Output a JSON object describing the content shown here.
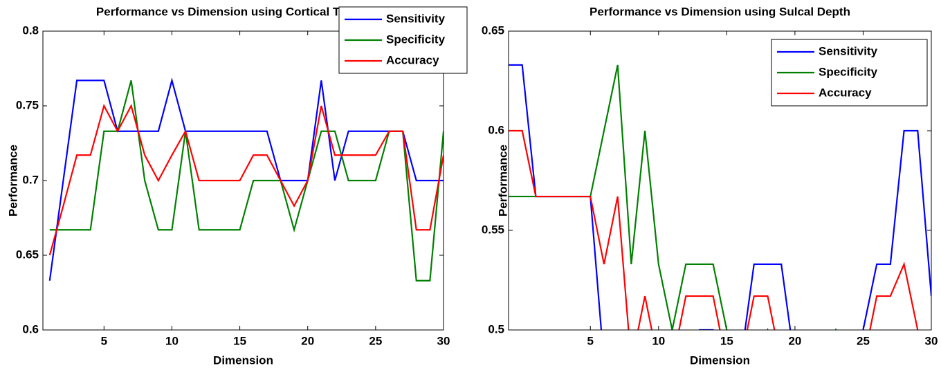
{
  "chart_data": [
    {
      "type": "line",
      "title": "Performance vs Dimension using Cortical Thickness",
      "xlabel": "Dimension",
      "ylabel": "Performance",
      "x": [
        1,
        2,
        3,
        4,
        5,
        6,
        7,
        8,
        9,
        10,
        11,
        12,
        13,
        14,
        15,
        16,
        17,
        18,
        19,
        20,
        21,
        22,
        23,
        24,
        25,
        26,
        27,
        28,
        29,
        30
      ],
      "xlim": [
        0.5,
        30
      ],
      "xticks": [
        5,
        10,
        15,
        20,
        25,
        30
      ],
      "ylim": [
        0.6,
        0.8
      ],
      "yticks": [
        0.6,
        0.65,
        0.7,
        0.75,
        0.8
      ],
      "legend": "upper right",
      "series": [
        {
          "name": "Sensitivity",
          "color": "#0000ff",
          "values": [
            0.633,
            0.7,
            0.767,
            0.767,
            0.767,
            0.733,
            0.733,
            0.733,
            0.733,
            0.767,
            0.733,
            0.733,
            0.733,
            0.733,
            0.733,
            0.733,
            0.733,
            0.7,
            0.7,
            0.7,
            0.767,
            0.7,
            0.733,
            0.733,
            0.733,
            0.733,
            0.733,
            0.7,
            0.7,
            0.7
          ]
        },
        {
          "name": "Specificity",
          "color": "#008000",
          "values": [
            0.667,
            0.667,
            0.667,
            0.667,
            0.733,
            0.733,
            0.767,
            0.7,
            0.667,
            0.667,
            0.733,
            0.667,
            0.667,
            0.667,
            0.667,
            0.7,
            0.7,
            0.7,
            0.667,
            0.7,
            0.733,
            0.733,
            0.7,
            0.7,
            0.7,
            0.733,
            0.733,
            0.633,
            0.633,
            0.733
          ]
        },
        {
          "name": "Accuracy",
          "color": "#ff0000",
          "values": [
            0.65,
            0.683,
            0.717,
            0.717,
            0.75,
            0.733,
            0.75,
            0.717,
            0.7,
            0.717,
            0.733,
            0.7,
            0.7,
            0.7,
            0.7,
            0.717,
            0.717,
            0.7,
            0.683,
            0.7,
            0.75,
            0.717,
            0.717,
            0.717,
            0.717,
            0.733,
            0.733,
            0.667,
            0.667,
            0.717
          ]
        }
      ]
    },
    {
      "type": "line",
      "title": "Performance vs Dimension using Sulcal Depth",
      "xlabel": "Dimension",
      "ylabel": "Performance",
      "x": [
        -1,
        0,
        1,
        2,
        3,
        4,
        5,
        6,
        7,
        8,
        9,
        10,
        11,
        12,
        13,
        14,
        15,
        16,
        17,
        18,
        19,
        20,
        21,
        22,
        23,
        24,
        25,
        26,
        27,
        28,
        29,
        30
      ],
      "xlim": [
        -1,
        30
      ],
      "xticks": [
        5,
        10,
        15,
        20,
        25,
        30
      ],
      "ylim": [
        0.5,
        0.65
      ],
      "yticks": [
        0.5,
        0.55,
        0.6,
        0.65
      ],
      "legend": "upper right",
      "series": [
        {
          "name": "Sensitivity",
          "color": "#0000ff",
          "values": [
            0.633,
            0.633,
            0.567,
            0.567,
            0.567,
            0.567,
            0.567,
            0.483,
            0.483,
            0.483,
            0.483,
            0.483,
            0.483,
            0.483,
            0.5,
            0.5,
            0.483,
            0.483,
            0.533,
            0.533,
            0.533,
            0.483,
            0.483,
            0.483,
            0.483,
            0.483,
            0.5,
            0.533,
            0.533,
            0.6,
            0.6,
            0.517
          ]
        },
        {
          "name": "Specificity",
          "color": "#008000",
          "values": [
            0.567,
            0.567,
            0.567,
            0.567,
            0.567,
            0.567,
            0.567,
            0.6,
            0.633,
            0.533,
            0.6,
            0.533,
            0.5,
            0.533,
            0.533,
            0.533,
            0.5,
            0.483,
            0.483,
            0.5,
            0.483,
            0.483,
            0.483,
            0.483,
            0.5,
            0.483,
            0.483,
            0.483,
            0.483,
            0.483,
            0.483,
            0.483
          ]
        },
        {
          "name": "Accuracy",
          "color": "#ff0000",
          "values": [
            0.6,
            0.6,
            0.567,
            0.567,
            0.567,
            0.567,
            0.567,
            0.533,
            0.567,
            0.483,
            0.517,
            0.483,
            0.483,
            0.517,
            0.517,
            0.517,
            0.483,
            0.483,
            0.517,
            0.517,
            0.483,
            0.483,
            0.483,
            0.483,
            0.483,
            0.483,
            0.483,
            0.517,
            0.517,
            0.533,
            0.5,
            0.483
          ]
        }
      ]
    }
  ]
}
